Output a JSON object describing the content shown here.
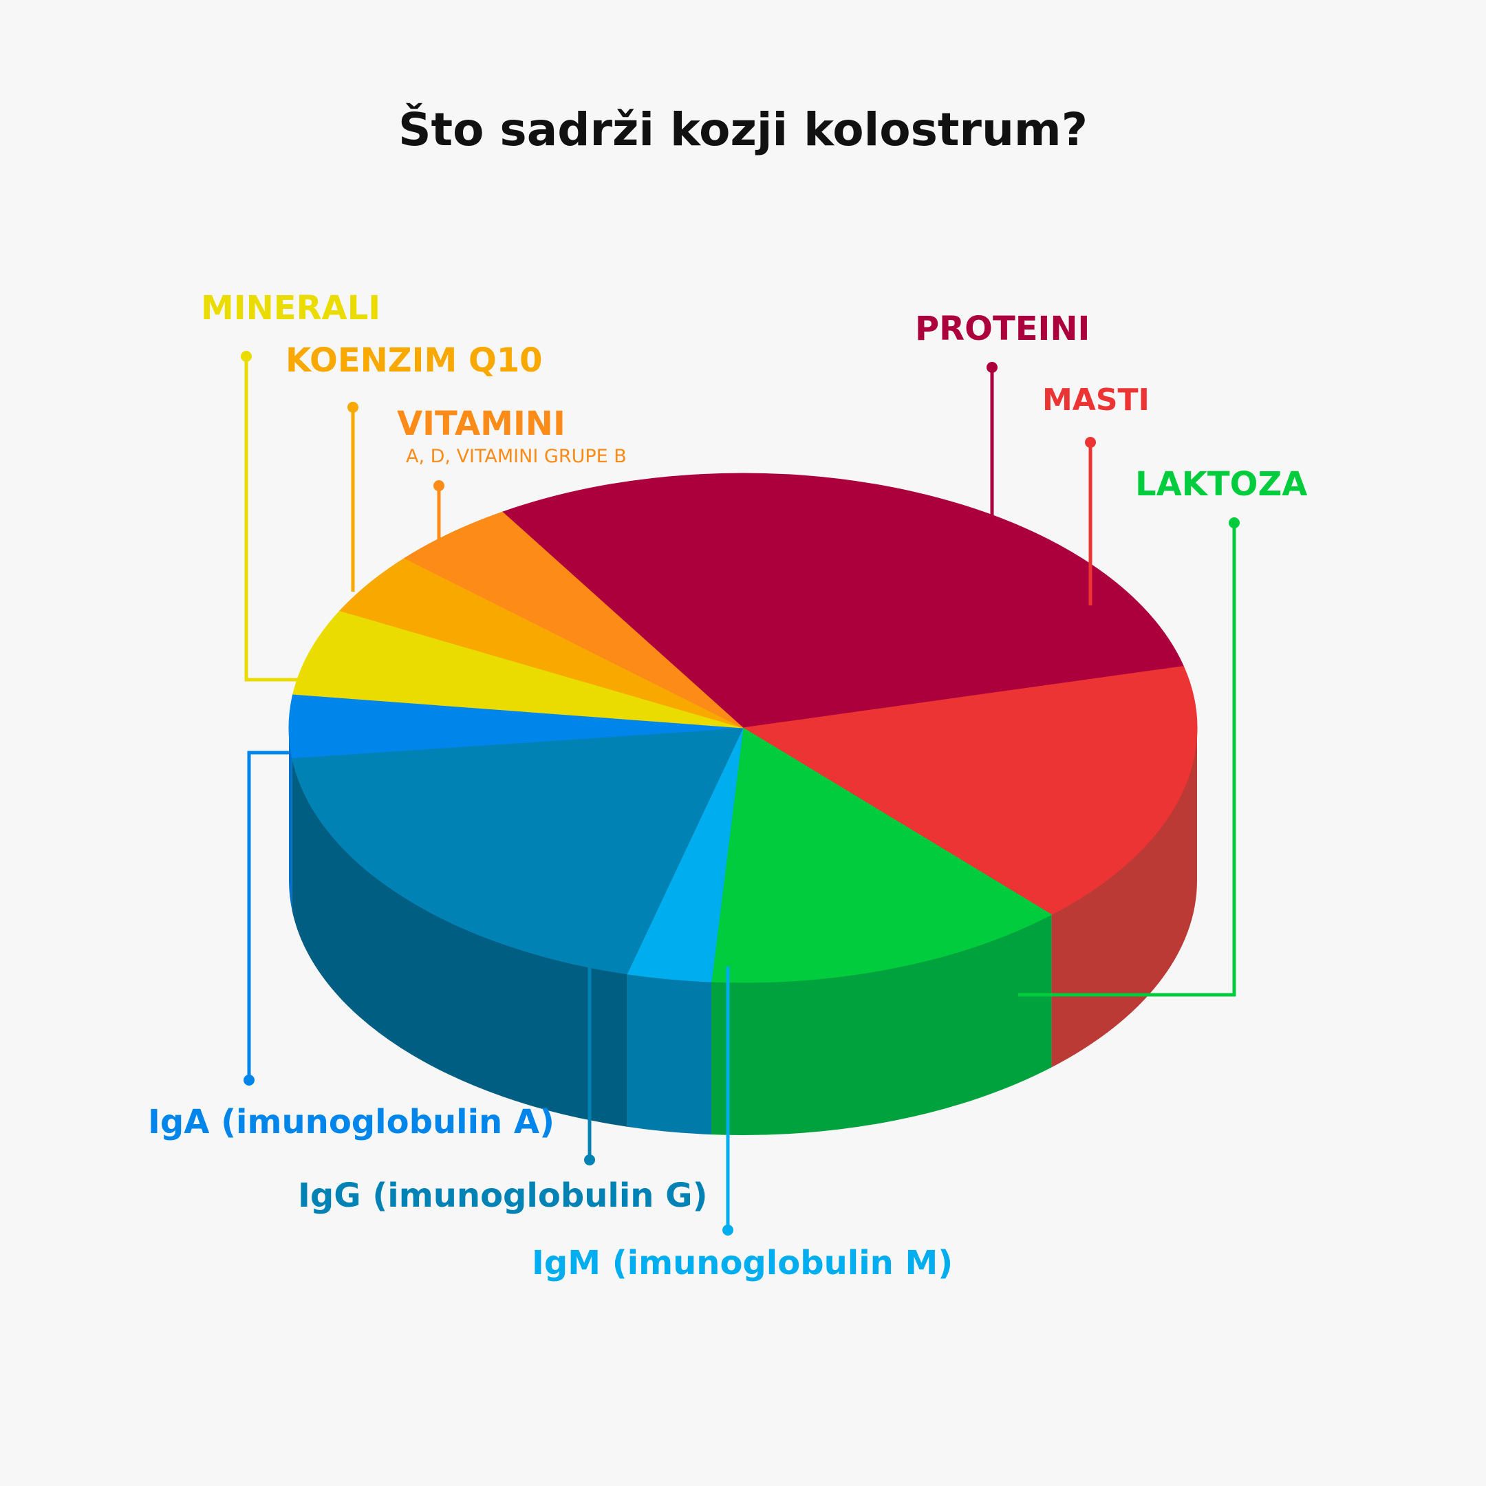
{
  "title": "Što sadrži kozji kolostrum?",
  "chart_data": {
    "type": "pie",
    "title": "Što sadrži kozji kolostrum?",
    "style": "3d",
    "slices": [
      {
        "label": "PROTEINI",
        "value": 30,
        "color": "#ac003c",
        "side_color": "#86002f"
      },
      {
        "label": "MASTI",
        "value": 17,
        "color": "#ec3434",
        "side_color": "#bb3a36"
      },
      {
        "label": "LAKTOZA",
        "value": 13,
        "color": "#00cc3d",
        "side_color": "#00a23e"
      },
      {
        "label": "IgM (imunoglobulin M)",
        "value": 3,
        "color": "#00adee",
        "side_color": "#007aa8"
      },
      {
        "label": "IgG (imunoglobulin G)",
        "value": 19,
        "color": "#0083b4",
        "side_color": "#005e82"
      },
      {
        "label": "IgA (imunoglobulin A)",
        "value": 4,
        "color": "#0085ea",
        "side_color": "#0070cc"
      },
      {
        "label": "MINERALI",
        "value": 5.5,
        "color": "#ebdc00"
      },
      {
        "label": "KOENZIM Q10",
        "value": 4,
        "color": "#f9a800"
      },
      {
        "label": "VITAMINI",
        "sublabel": "A, D, VITAMINI GRUPE B",
        "value": 4.5,
        "color": "#fc8b18"
      }
    ]
  },
  "labels": {
    "minerali": {
      "text": "MINERALI",
      "color": "#ebdc00"
    },
    "koenzim": {
      "text": "KOENZIM Q10",
      "color": "#f9a800"
    },
    "vitamini": {
      "text": "VITAMINI",
      "sub": "A, D, VITAMINI GRUPE B",
      "color": "#fc8b18"
    },
    "proteini": {
      "text": "PROTEINI",
      "color": "#ac003c"
    },
    "masti": {
      "text": "MASTI",
      "color": "#ec3434"
    },
    "laktoza": {
      "text": "LAKTOZA",
      "color": "#00cc3d"
    },
    "iga": {
      "text": "IgA (imunoglobulin A)",
      "color": "#0085ea"
    },
    "igg": {
      "text": "IgG (imunoglobulin G)",
      "color": "#0083b4"
    },
    "igm": {
      "text": "IgM (imunoglobulin M)",
      "color": "#00adee"
    }
  }
}
